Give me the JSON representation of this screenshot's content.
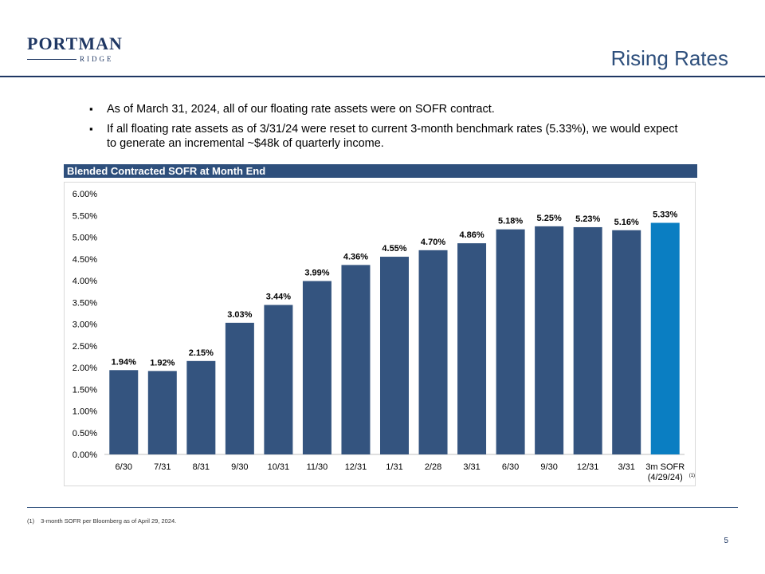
{
  "logo": {
    "name": "PORTMAN",
    "sub": "RIDGE"
  },
  "page_title": "Rising Rates",
  "bullets": [
    "As of March 31, 2024, all of our floating rate assets were on SOFR contract.",
    "If all floating rate assets as of 3/31/24 were reset to current 3-month benchmark rates (5.33%), we would expect to generate an incremental ~$48k of quarterly income."
  ],
  "section_header": "Blended Contracted SOFR at Month End",
  "chart_data": {
    "type": "bar",
    "title": "Blended Contracted SOFR at Month End",
    "categories": [
      "6/30",
      "7/31",
      "8/31",
      "9/30",
      "10/31",
      "11/30",
      "12/31",
      "1/31",
      "2/28",
      "3/31",
      "6/30",
      "9/30",
      "12/31",
      "3/31",
      "3m SOFR (4/29/24)"
    ],
    "category_footnote": {
      "index": 14,
      "mark": "(1)"
    },
    "values": [
      1.94,
      1.92,
      2.15,
      3.03,
      3.44,
      3.99,
      4.36,
      4.55,
      4.7,
      4.86,
      5.18,
      5.25,
      5.23,
      5.16,
      5.33
    ],
    "value_labels": [
      "1.94%",
      "1.92%",
      "2.15%",
      "3.03%",
      "3.44%",
      "3.99%",
      "4.36%",
      "4.55%",
      "4.70%",
      "4.86%",
      "5.18%",
      "5.25%",
      "5.23%",
      "5.16%",
      "5.33%"
    ],
    "ylim": [
      0,
      6
    ],
    "yticks": [
      0,
      0.5,
      1.0,
      1.5,
      2.0,
      2.5,
      3.0,
      3.5,
      4.0,
      4.5,
      5.0,
      5.5,
      6.0
    ],
    "ytick_labels": [
      "0.00%",
      "0.50%",
      "1.00%",
      "1.50%",
      "2.00%",
      "2.50%",
      "3.00%",
      "3.50%",
      "4.00%",
      "4.50%",
      "5.00%",
      "5.50%",
      "6.00%"
    ],
    "colors": {
      "bar": "#34547f",
      "highlight": "#0a7ec2"
    },
    "highlight_index": 14,
    "grid": false
  },
  "footnote": {
    "mark": "(1)",
    "text": "3-month SOFR per Bloomberg as of April 29, 2024."
  },
  "page_number": "5"
}
